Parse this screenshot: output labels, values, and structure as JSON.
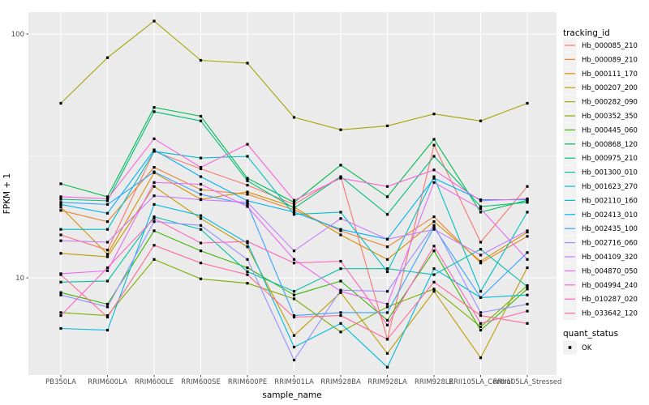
{
  "chart_data": {
    "type": "line",
    "title": "",
    "xlabel": "sample_name",
    "ylabel": "FPKM + 1",
    "y_scale": "log10",
    "y_breaks": [
      10,
      100
    ],
    "y_break_labels": [
      "10",
      "100"
    ],
    "y_minor_breaks": [
      31.6
    ],
    "ylim": [
      4.0,
      123
    ],
    "grid": true,
    "legend_position": "right",
    "panel_background": "#EBEBEB",
    "grid_color": "#FFFFFF",
    "tick_color": "#333333",
    "tick_label_color": "#4D4D4D",
    "point_color": "#000000",
    "point_shape": "square",
    "categories": [
      "PB350LA",
      "RRIM600LA",
      "RRIM600LE",
      "RRIM600SE",
      "RRIM600PE",
      "RRIM901LA",
      "RRIM928BA",
      "RRIM928LA",
      "RRIM928LE",
      "RRII105LA_Control",
      "RRII105LA_Stressed"
    ],
    "legend_title": "tracking_id",
    "legend_key_fill": "#F2F2F2",
    "series": [
      {
        "name": "Hb_000085_210",
        "color": "#F8766D",
        "values": [
          15,
          13,
          33,
          28,
          24,
          20,
          26,
          5.6,
          35,
          14,
          23.7
        ]
      },
      {
        "name": "Hb_000089_210",
        "color": "#EA8331",
        "values": [
          18.9,
          17,
          28.4,
          23,
          22,
          19,
          15.6,
          13.4,
          17.8,
          11.5,
          14.8
        ]
      },
      {
        "name": "Hb_000111_170",
        "color": "#D89000",
        "values": [
          19.5,
          12.5,
          27,
          21,
          22.5,
          19.5,
          15,
          11.9,
          17,
          11.7,
          15.4
        ]
      },
      {
        "name": "Hb_000207_200",
        "color": "#C09B00",
        "values": [
          12.6,
          12.2,
          23.7,
          17.5,
          13.4,
          5.8,
          8.7,
          4.9,
          8.8,
          4.7,
          11
        ]
      },
      {
        "name": "Hb_000282_090",
        "color": "#A3A500",
        "values": [
          52,
          80,
          113,
          78,
          76,
          45.5,
          40.5,
          42,
          47,
          44,
          52
        ]
      },
      {
        "name": "Hb_000352_350",
        "color": "#7CAE00",
        "values": [
          7.2,
          7,
          11.9,
          9.9,
          9.5,
          8.2,
          6,
          7.6,
          9,
          6.3,
          9.3
        ]
      },
      {
        "name": "Hb_000445_060",
        "color": "#39B600",
        "values": [
          8.7,
          7.8,
          15.6,
          12.9,
          11,
          8.5,
          9.7,
          6.7,
          12.9,
          6.1,
          9
        ]
      },
      {
        "name": "Hb_000868_120",
        "color": "#00BB4E",
        "values": [
          24.3,
          21.5,
          50,
          46,
          25.6,
          20.4,
          29,
          21.5,
          37,
          18.6,
          20.8
        ]
      },
      {
        "name": "Hb_000975_210",
        "color": "#00BF7D",
        "values": [
          21,
          20.7,
          48,
          44,
          25,
          19.3,
          26,
          18.2,
          31.5,
          19.6,
          20.4
        ]
      },
      {
        "name": "Hb_001300_010",
        "color": "#00C1A3",
        "values": [
          9.6,
          9.7,
          17.8,
          15.8,
          10.6,
          8.8,
          10.9,
          10.9,
          10.3,
          13.1,
          9.2
        ]
      },
      {
        "name": "Hb_001623_270",
        "color": "#00BFC4",
        "values": [
          15.8,
          15.8,
          33,
          31,
          31.5,
          18.2,
          18.6,
          10.6,
          26,
          8.8,
          18.6
        ]
      },
      {
        "name": "Hb_002110_160",
        "color": "#00BADE",
        "values": [
          6.2,
          6.1,
          20,
          18,
          13.9,
          5.2,
          6.5,
          4.3,
          10.9,
          8.3,
          8.5
        ]
      },
      {
        "name": "Hb_002413_010",
        "color": "#00B0F6",
        "values": [
          20,
          18.4,
          33.5,
          26,
          20.7,
          18.6,
          15.8,
          14.4,
          25.6,
          20.9,
          20.9
        ]
      },
      {
        "name": "Hb_002435_100",
        "color": "#35A2FF",
        "values": [
          20.4,
          20,
          27.2,
          22,
          20,
          7,
          7.2,
          7.2,
          16.1,
          8.3,
          12.7
        ]
      },
      {
        "name": "Hb_002716_060",
        "color": "#9590FF",
        "values": [
          8.5,
          7.6,
          17,
          16.4,
          11.9,
          4.6,
          8.9,
          8.8,
          16.4,
          7.2,
          7.8
        ]
      },
      {
        "name": "Hb_004109_320",
        "color": "#C77CFF",
        "values": [
          14.2,
          14,
          21.7,
          20.9,
          20.4,
          12.9,
          17.5,
          14.4,
          15.8,
          12.4,
          15.6
        ]
      },
      {
        "name": "Hb_004870_050",
        "color": "#E76BF3",
        "values": [
          10.4,
          10.7,
          24.6,
          24.2,
          19.6,
          11.9,
          8.8,
          7.8,
          24.6,
          19.2,
          11.9
        ]
      },
      {
        "name": "Hb_004994_240",
        "color": "#FA62DB",
        "values": [
          21.5,
          21.1,
          37.2,
          28.4,
          35.3,
          20.8,
          25.6,
          23.7,
          27.7,
          20.7,
          21.1
        ]
      },
      {
        "name": "Hb_010287_020",
        "color": "#FF62BC",
        "values": [
          7,
          11,
          17.5,
          13.9,
          14.1,
          11.5,
          11.7,
          6.4,
          13.5,
          6.5,
          7.3
        ]
      },
      {
        "name": "Hb_033642_120",
        "color": "#FF6A98",
        "values": [
          10.3,
          6.9,
          13.6,
          11.5,
          10.3,
          6.9,
          7,
          5.6,
          9.6,
          7,
          6.5
        ]
      }
    ],
    "quant_legend": {
      "title": "quant_status",
      "items": [
        {
          "label": "OK",
          "color": "#000000"
        }
      ]
    }
  }
}
